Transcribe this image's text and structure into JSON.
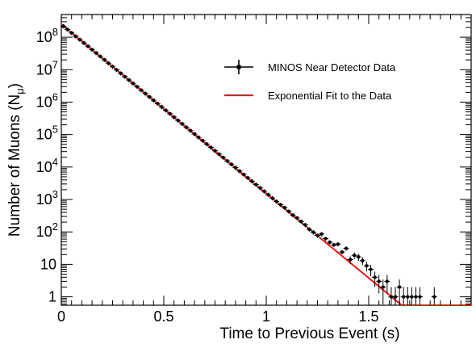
{
  "chart_data": {
    "type": "scatter",
    "xlabel": "Time to Previous Event (s)",
    "ylabel": "Number of Muons (N",
    "ylabel_subscript": "μ",
    "ylabel_suffix": ")",
    "xlim": [
      0,
      2.0
    ],
    "ylim": [
      0.55,
      500000000
    ],
    "yscale": "log",
    "x_ticks": [
      {
        "v": 0,
        "label": "0"
      },
      {
        "v": 0.5,
        "label": "0.5"
      },
      {
        "v": 1,
        "label": "1"
      },
      {
        "v": 1.5,
        "label": "1.5"
      }
    ],
    "y_ticks": [
      {
        "v": 1,
        "label": "1"
      },
      {
        "v": 10,
        "label": "10"
      },
      {
        "v": 100,
        "label": "10",
        "exp": "2"
      },
      {
        "v": 1000,
        "label": "10",
        "exp": "3"
      },
      {
        "v": 10000,
        "label": "10",
        "exp": "4"
      },
      {
        "v": 100000,
        "label": "10",
        "exp": "5"
      },
      {
        "v": 1000000,
        "label": "10",
        "exp": "6"
      },
      {
        "v": 10000000,
        "label": "10",
        "exp": "7"
      },
      {
        "v": 100000000,
        "label": "10",
        "exp": "8"
      }
    ],
    "grid": false,
    "legend": {
      "position": "top-right",
      "entries": [
        {
          "name": "MINOS Near Detector Data",
          "style": "errorbar",
          "color": "#000000"
        },
        {
          "name": "Exponential Fit to the Data",
          "style": "line",
          "color": "#e41a1c"
        }
      ]
    },
    "fit": {
      "name": "Exponential Fit to the Data",
      "A": 250000000,
      "lambda": 12.0,
      "x_range": [
        0,
        2.0
      ],
      "floor": 0.55
    },
    "series": [
      {
        "name": "MINOS Near Detector Data",
        "x": [
          0.01,
          0.03,
          0.05,
          0.07,
          0.09,
          0.11,
          0.13,
          0.15,
          0.17,
          0.19,
          0.21,
          0.23,
          0.25,
          0.27,
          0.29,
          0.31,
          0.33,
          0.35,
          0.37,
          0.39,
          0.41,
          0.43,
          0.45,
          0.47,
          0.49,
          0.51,
          0.53,
          0.55,
          0.57,
          0.59,
          0.61,
          0.63,
          0.65,
          0.67,
          0.69,
          0.71,
          0.73,
          0.75,
          0.77,
          0.79,
          0.81,
          0.83,
          0.85,
          0.87,
          0.89,
          0.91,
          0.93,
          0.95,
          0.97,
          0.99,
          1.01,
          1.03,
          1.05,
          1.07,
          1.09,
          1.11,
          1.13,
          1.15,
          1.17,
          1.19,
          1.21,
          1.23,
          1.25,
          1.27,
          1.29,
          1.31,
          1.33,
          1.35,
          1.37,
          1.39,
          1.41,
          1.43,
          1.45,
          1.47,
          1.49,
          1.51,
          1.53,
          1.55,
          1.57,
          1.59,
          1.61,
          1.63,
          1.65,
          1.67,
          1.69,
          1.71,
          1.73,
          1.75,
          1.82
        ],
        "y": [
          220000000,
          173000000,
          136000000,
          107000000,
          84900000,
          66800000,
          52800000,
          41400000,
          32600000,
          25700000,
          20200000,
          15900000,
          12500000,
          9850000,
          7750000,
          6100000,
          4810000,
          3780000,
          2980000,
          2340000,
          1850000,
          1450000,
          1140000,
          900000,
          710000,
          560000,
          440000,
          346000,
          272000,
          214000,
          168000,
          133000,
          104000,
          82000,
          65000,
          51000,
          40200,
          31600,
          24900,
          19600,
          15400,
          12200,
          9600,
          7500,
          5900,
          4650,
          3660,
          2880,
          2270,
          1790,
          1400,
          1100,
          870,
          690,
          560,
          430,
          330,
          270,
          210,
          165,
          120,
          98,
          78,
          86,
          62,
          48,
          40,
          42,
          24,
          31,
          14,
          19,
          17,
          13,
          9,
          7,
          4,
          3,
          2,
          3,
          1,
          1,
          2,
          1,
          1,
          1,
          1,
          1,
          1
        ],
        "error_low_frac": 0.15,
        "error_high_frac": 0.15
      }
    ]
  }
}
